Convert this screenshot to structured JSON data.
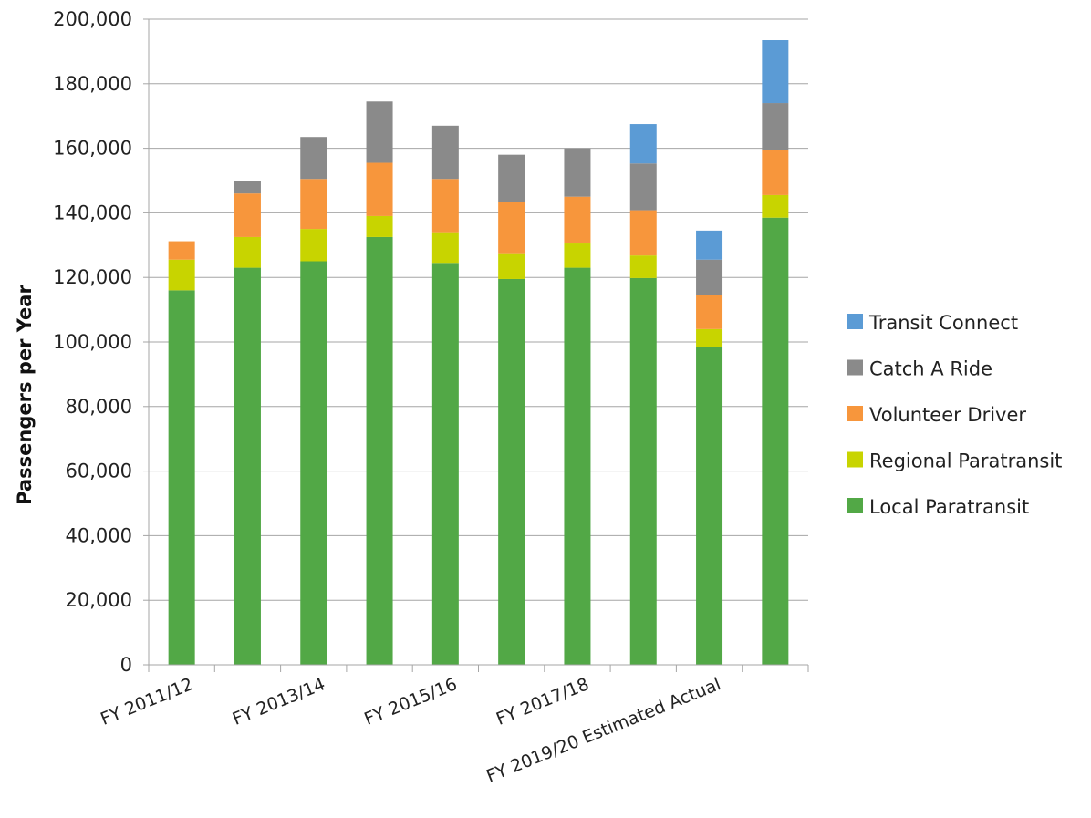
{
  "chart_data": {
    "type": "bar",
    "stacked": true,
    "title": "",
    "xlabel": "",
    "ylabel": "Passengers per Year",
    "ylim": [
      0,
      200000
    ],
    "ytick_step": 20000,
    "ytick_labels": [
      "0",
      "20,000",
      "40,000",
      "60,000",
      "80,000",
      "100,000",
      "120,000",
      "140,000",
      "160,000",
      "180,000",
      "200,000"
    ],
    "grid": true,
    "legend_position": "right",
    "categories": [
      "FY 2011/12",
      "",
      "FY 2013/14",
      "",
      "FY 2015/16",
      "",
      "FY 2017/18",
      "",
      "FY 2019/20 Estimated Actual",
      ""
    ],
    "series": [
      {
        "name": "Local Paratransit",
        "color": "#52a846",
        "values": [
          116000,
          123000,
          125000,
          132500,
          124500,
          119500,
          123000,
          119800,
          98500,
          138500
        ]
      },
      {
        "name": "Regional Paratransit",
        "color": "#c8d400",
        "values": [
          9500,
          9500,
          10000,
          6500,
          9500,
          8000,
          7500,
          7000,
          5500,
          7000
        ]
      },
      {
        "name": "Volunteer Driver",
        "color": "#f7963c",
        "values": [
          5700,
          13500,
          15500,
          16500,
          16500,
          16000,
          14500,
          14000,
          10500,
          14000
        ]
      },
      {
        "name": "Catch A Ride",
        "color": "#8a8a8a",
        "values": [
          0,
          4000,
          13000,
          19000,
          16500,
          14500,
          15000,
          14500,
          11000,
          14500
        ]
      },
      {
        "name": "Transit Connect",
        "color": "#5b9bd5",
        "values": [
          0,
          0,
          0,
          0,
          0,
          0,
          0,
          12200,
          9000,
          19500
        ]
      }
    ]
  }
}
